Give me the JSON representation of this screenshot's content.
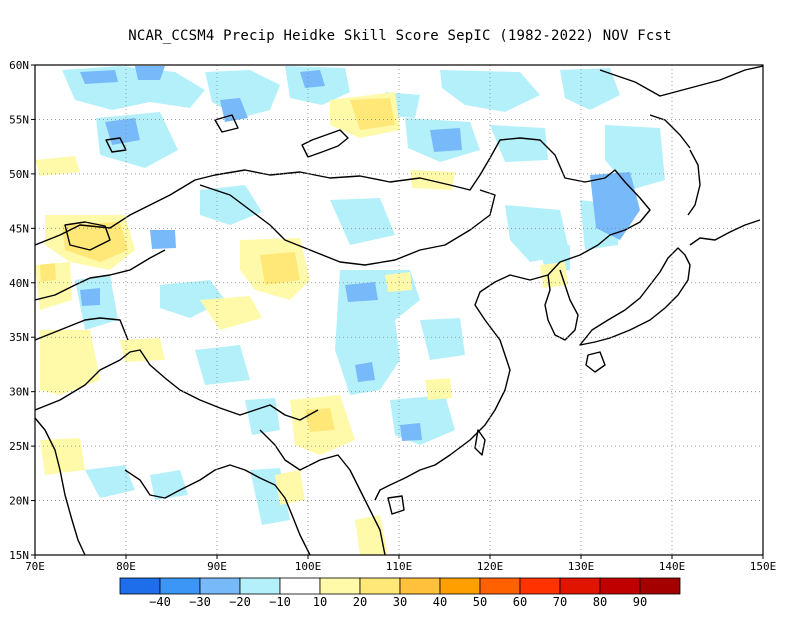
{
  "title": "NCAR_CCSM4 Precip Heidke Skill Score SepIC (1982-2022) NOV Fcst",
  "map": {
    "lon_range": [
      70,
      150
    ],
    "lat_range": [
      15,
      60
    ],
    "x_ticks": [
      "70E",
      "80E",
      "90E",
      "100E",
      "110E",
      "120E",
      "130E",
      "140E",
      "150E"
    ],
    "y_ticks": [
      "15N",
      "20N",
      "25N",
      "30N",
      "35N",
      "40N",
      "45N",
      "50N",
      "55N",
      "60N"
    ],
    "grid": "dotted",
    "colors": {
      "coast": "#000000",
      "light_blue": "#b4f0fa",
      "mid_blue": "#96d2fa",
      "blue": "#78b9fa",
      "dark_blue": "#3c96f5",
      "light_yellow": "#fffaaa",
      "yellow": "#ffe878"
    }
  },
  "colorbar": {
    "colors": [
      "#1e6eeb",
      "#3c96f5",
      "#78b9fa",
      "#b4f0fa",
      "#ffffff",
      "#fffaaa",
      "#ffe878",
      "#ffc03c",
      "#ffa000",
      "#ff6000",
      "#ff3200",
      "#e11400",
      "#c00000",
      "#a50000"
    ],
    "labels": [
      "-40",
      "-30",
      "-20",
      "-10",
      "10",
      "20",
      "30",
      "40",
      "50",
      "60",
      "70",
      "80",
      "90"
    ]
  }
}
